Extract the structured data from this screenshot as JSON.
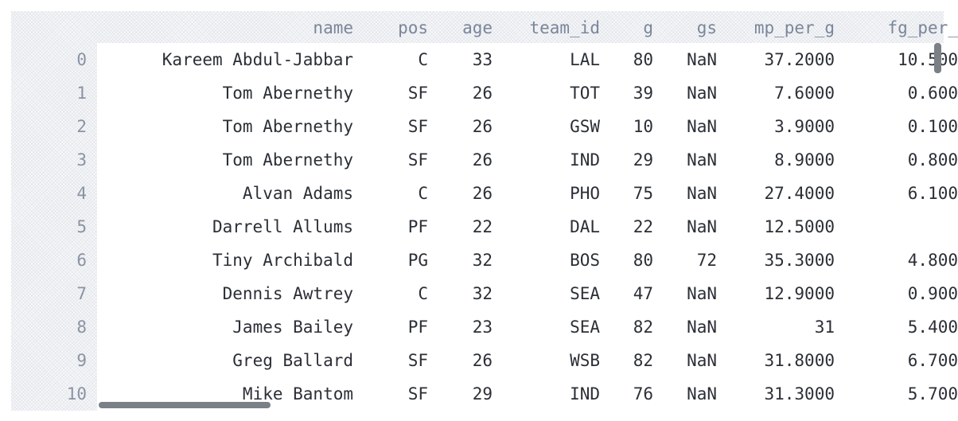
{
  "columns": {
    "index": "",
    "name": "name",
    "pos": "pos",
    "age": "age",
    "team_id": "team_id",
    "g": "g",
    "gs": "gs",
    "mp_per_g": "mp_per_g",
    "fg_per_g": "fg_per_"
  },
  "rows": [
    {
      "index": "0",
      "name": "Kareem Abdul-Jabbar",
      "pos": "C",
      "age": "33",
      "team_id": "LAL",
      "g": "80",
      "gs": "NaN",
      "mp_per_g": "37.2000",
      "fg_per_g": "10.500"
    },
    {
      "index": "1",
      "name": "Tom Abernethy",
      "pos": "SF",
      "age": "26",
      "team_id": "TOT",
      "g": "39",
      "gs": "NaN",
      "mp_per_g": "7.6000",
      "fg_per_g": "0.600"
    },
    {
      "index": "2",
      "name": "Tom Abernethy",
      "pos": "SF",
      "age": "26",
      "team_id": "GSW",
      "g": "10",
      "gs": "NaN",
      "mp_per_g": "3.9000",
      "fg_per_g": "0.100"
    },
    {
      "index": "3",
      "name": "Tom Abernethy",
      "pos": "SF",
      "age": "26",
      "team_id": "IND",
      "g": "29",
      "gs": "NaN",
      "mp_per_g": "8.9000",
      "fg_per_g": "0.800"
    },
    {
      "index": "4",
      "name": "Alvan Adams",
      "pos": "C",
      "age": "26",
      "team_id": "PHO",
      "g": "75",
      "gs": "NaN",
      "mp_per_g": "27.4000",
      "fg_per_g": "6.100"
    },
    {
      "index": "5",
      "name": "Darrell Allums",
      "pos": "PF",
      "age": "22",
      "team_id": "DAL",
      "g": "22",
      "gs": "NaN",
      "mp_per_g": "12.5000",
      "fg_per_g": ""
    },
    {
      "index": "6",
      "name": "Tiny Archibald",
      "pos": "PG",
      "age": "32",
      "team_id": "BOS",
      "g": "80",
      "gs": "72",
      "mp_per_g": "35.3000",
      "fg_per_g": "4.800"
    },
    {
      "index": "7",
      "name": "Dennis Awtrey",
      "pos": "C",
      "age": "32",
      "team_id": "SEA",
      "g": "47",
      "gs": "NaN",
      "mp_per_g": "12.9000",
      "fg_per_g": "0.900"
    },
    {
      "index": "8",
      "name": "James Bailey",
      "pos": "PF",
      "age": "23",
      "team_id": "SEA",
      "g": "82",
      "gs": "NaN",
      "mp_per_g": "31",
      "fg_per_g": "5.400"
    },
    {
      "index": "9",
      "name": "Greg Ballard",
      "pos": "SF",
      "age": "26",
      "team_id": "WSB",
      "g": "82",
      "gs": "NaN",
      "mp_per_g": "31.8000",
      "fg_per_g": "6.700"
    },
    {
      "index": "10",
      "name": "Mike Bantom",
      "pos": "SF",
      "age": "29",
      "team_id": "IND",
      "g": "76",
      "gs": "NaN",
      "mp_per_g": "31.3000",
      "fg_per_g": "5.700"
    }
  ]
}
